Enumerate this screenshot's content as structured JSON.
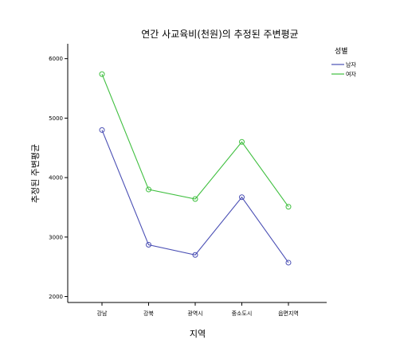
{
  "chart_data": {
    "type": "line",
    "title": "연간 사교육비(천원)의 추정된 주변평균",
    "xlabel": "지역",
    "ylabel": "추정된 주변평균",
    "categories": [
      "강남",
      "강북",
      "광역시",
      "중소도시",
      "읍면지역"
    ],
    "ylim": [
      1900,
      6250
    ],
    "yticks": [
      2000,
      3000,
      4000,
      5000,
      6000
    ],
    "grid": false,
    "legend": {
      "title": "성별",
      "placement": "right"
    },
    "series": [
      {
        "name": "남자",
        "color": "#4a4fb4",
        "values": [
          4800,
          2870,
          2700,
          3670,
          2570
        ]
      },
      {
        "name": "여자",
        "color": "#3fbf3f",
        "values": [
          5740,
          3800,
          3640,
          4600,
          3510
        ]
      }
    ]
  }
}
